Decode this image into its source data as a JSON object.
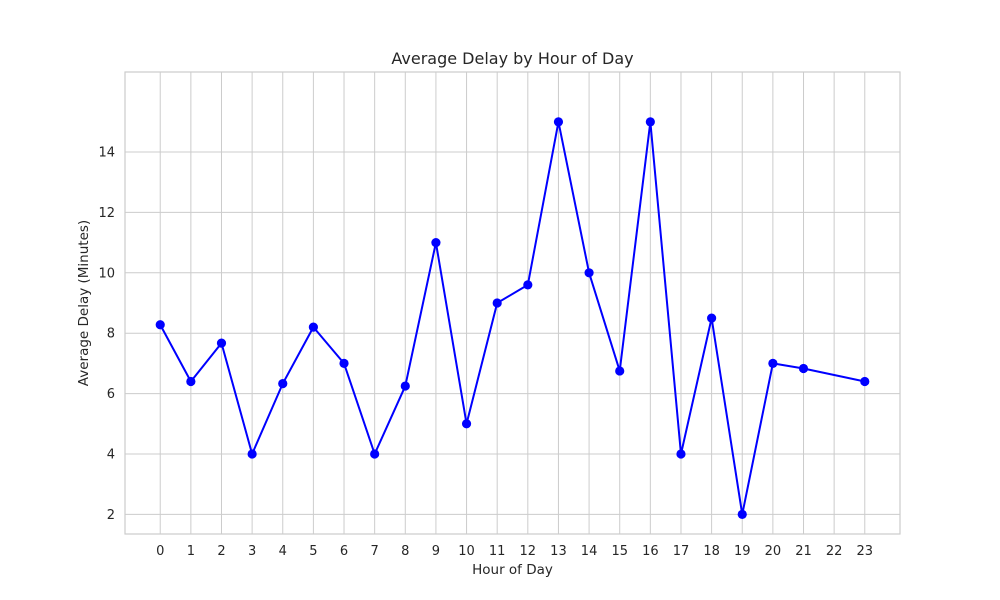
{
  "chart_data": {
    "type": "line",
    "title": "Average Delay by Hour of Day",
    "xlabel": "Hour of Day",
    "ylabel": "Average Delay (Minutes)",
    "x": [
      0,
      1,
      2,
      3,
      4,
      5,
      6,
      7,
      8,
      9,
      10,
      11,
      12,
      13,
      14,
      15,
      16,
      17,
      18,
      19,
      20,
      21,
      23
    ],
    "x_ticks": [
      "0",
      "1",
      "2",
      "3",
      "4",
      "5",
      "6",
      "7",
      "8",
      "9",
      "10",
      "11",
      "12",
      "13",
      "14",
      "15",
      "16",
      "17",
      "18",
      "19",
      "20",
      "21",
      "22",
      "23"
    ],
    "series": [
      {
        "values": [
          8.28,
          6.4,
          7.67,
          4.0,
          6.33,
          8.2,
          7.0,
          4.0,
          6.25,
          11.0,
          5.0,
          9.0,
          9.6,
          15.0,
          10.0,
          6.75,
          15.0,
          4.0,
          8.5,
          2.0,
          7.0,
          6.83,
          6.4
        ],
        "color": "#0000ff"
      }
    ],
    "xlim": [
      -1.15,
      24.15
    ],
    "ylim": [
      1.35,
      16.65
    ],
    "y_ticks": [
      2,
      4,
      6,
      8,
      10,
      12,
      14
    ],
    "grid": true,
    "marker": "circle"
  }
}
